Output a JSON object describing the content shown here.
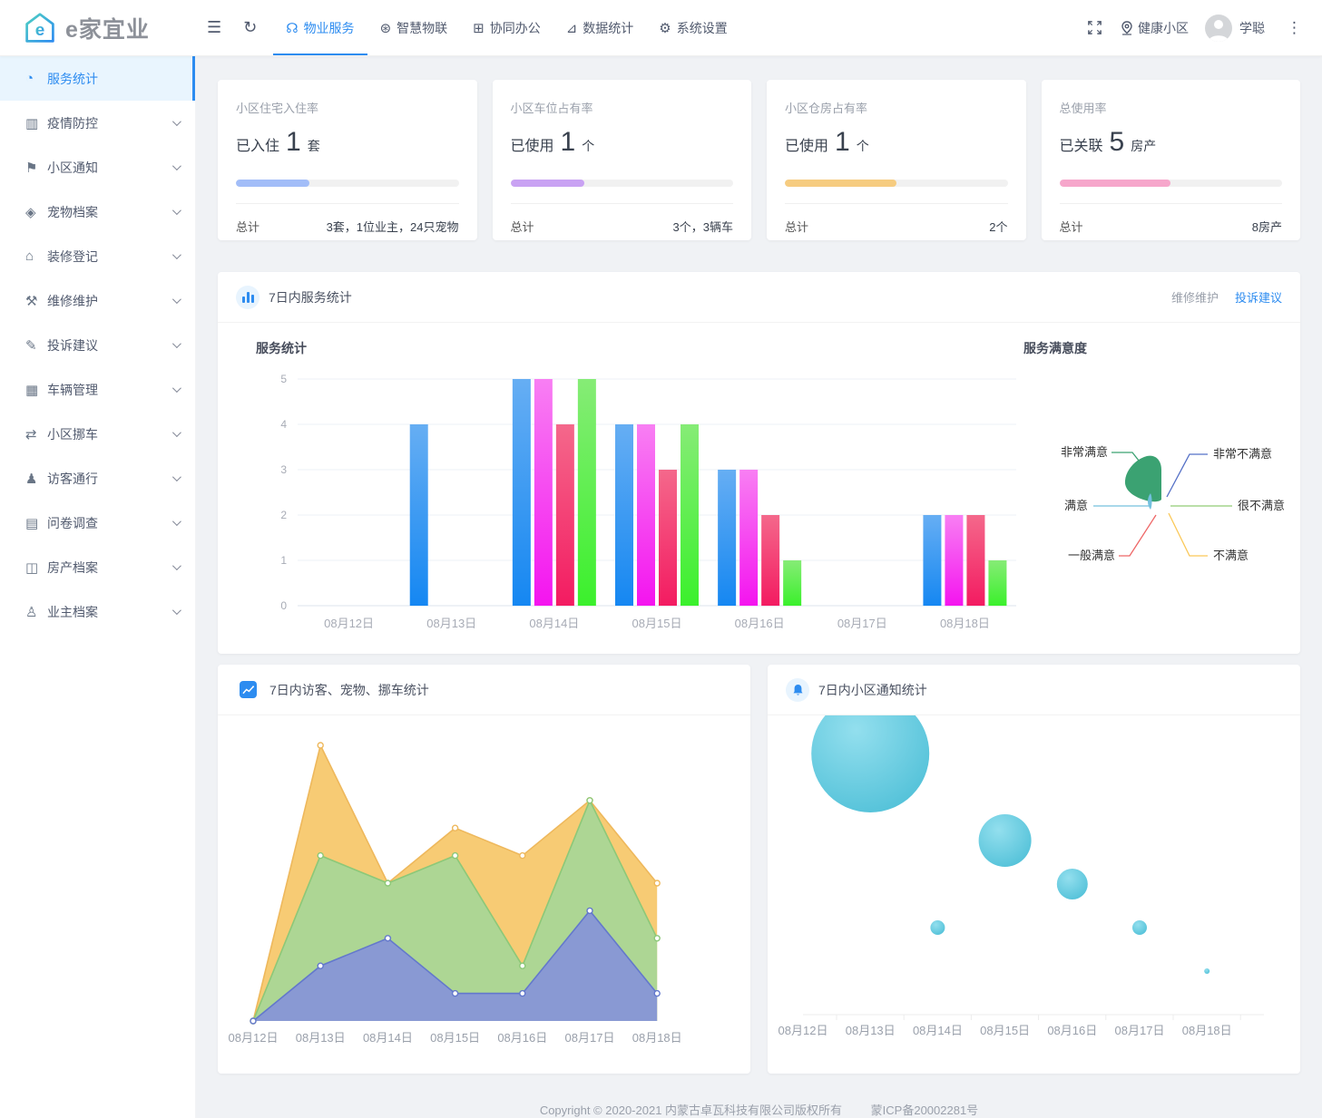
{
  "header": {
    "logo_text": "e家宜业",
    "nav": [
      {
        "label": "物业服务",
        "icon": "headset-icon",
        "glyph": "☊",
        "active": true
      },
      {
        "label": "智慧物联",
        "icon": "iot-icon",
        "glyph": "⊛",
        "active": false
      },
      {
        "label": "协同办公",
        "icon": "office-icon",
        "glyph": "⊞",
        "active": false
      },
      {
        "label": "数据统计",
        "icon": "data-stats-icon",
        "glyph": "⊿",
        "active": false
      },
      {
        "label": "系统设置",
        "icon": "settings-gear-icon",
        "glyph": "⚙",
        "active": false
      }
    ],
    "community": "健康小区",
    "username": "学聪"
  },
  "sidebar": {
    "items": [
      {
        "label": "服务统计",
        "icon": "gauge-icon",
        "glyph": "◔",
        "active": true,
        "expandable": false
      },
      {
        "label": "疫情防控",
        "icon": "epidemic-doc-icon",
        "glyph": "▥",
        "active": false,
        "expandable": true
      },
      {
        "label": "小区通知",
        "icon": "megaphone-icon",
        "glyph": "⚑",
        "active": false,
        "expandable": true
      },
      {
        "label": "宠物档案",
        "icon": "pet-icon",
        "glyph": "◈",
        "active": false,
        "expandable": true
      },
      {
        "label": "装修登记",
        "icon": "house-renovation-icon",
        "glyph": "⌂",
        "active": false,
        "expandable": true
      },
      {
        "label": "维修维护",
        "icon": "repair-tools-icon",
        "glyph": "⚒",
        "active": false,
        "expandable": true
      },
      {
        "label": "投诉建议",
        "icon": "complaint-icon",
        "glyph": "✎",
        "active": false,
        "expandable": true
      },
      {
        "label": "车辆管理",
        "icon": "vehicle-icon",
        "glyph": "▦",
        "active": false,
        "expandable": true
      },
      {
        "label": "小区挪车",
        "icon": "move-car-icon",
        "glyph": "⇄",
        "active": false,
        "expandable": true
      },
      {
        "label": "访客通行",
        "icon": "visitor-icon",
        "glyph": "♟",
        "active": false,
        "expandable": true
      },
      {
        "label": "问卷调查",
        "icon": "survey-icon",
        "glyph": "▤",
        "active": false,
        "expandable": true
      },
      {
        "label": "房产档案",
        "icon": "property-archive-icon",
        "glyph": "◫",
        "active": false,
        "expandable": true
      },
      {
        "label": "业主档案",
        "icon": "owner-archive-icon",
        "glyph": "♙",
        "active": false,
        "expandable": true
      }
    ]
  },
  "cards": [
    {
      "title": "小区住宅入住率",
      "prefix": "已入住",
      "value": "1",
      "unit": "套",
      "percent": 33,
      "bar_color": "#a2bdf8",
      "total_label": "总计",
      "total_value": "3套，1位业主，24只宠物"
    },
    {
      "title": "小区车位占有率",
      "prefix": "已使用",
      "value": "1",
      "unit": "个",
      "percent": 33,
      "bar_color": "#c9a2f3",
      "total_label": "总计",
      "total_value": "3个，3辆车"
    },
    {
      "title": "小区仓房占有率",
      "prefix": "已使用",
      "value": "1",
      "unit": "个",
      "percent": 50,
      "bar_color": "#f6cc80",
      "total_label": "总计",
      "total_value": "2个"
    },
    {
      "title": "总使用率",
      "prefix": "已关联",
      "value": "5",
      "unit": "房产",
      "percent": 50,
      "bar_color": "#f6a6cb",
      "total_label": "总计",
      "total_value": "8房产"
    }
  ],
  "service_panel": {
    "title": "7日内服务统计",
    "links": [
      {
        "label": "维修维护",
        "active": false
      },
      {
        "label": "投诉建议",
        "active": true
      }
    ]
  },
  "visitor_panel": {
    "title": "7日内访客、宠物、挪车统计"
  },
  "notice_panel": {
    "title": "7日内小区通知统计"
  },
  "footer": {
    "copyright": "Copyright © 2020-2021 内蒙古卓瓦科技有限公司版权所有",
    "icp": "蒙ICP备20002281号"
  },
  "chart_data": [
    {
      "type": "bar",
      "title": "服务统计",
      "categories": [
        "08月12日",
        "08月13日",
        "08月14日",
        "08月15日",
        "08月16日",
        "08月17日",
        "08月18日"
      ],
      "series": [
        {
          "name": "series-blue",
          "color_top": "#66aef3",
          "color_bottom": "#1587f2",
          "values": [
            0,
            4,
            5,
            4,
            3,
            0,
            2
          ]
        },
        {
          "name": "series-magenta",
          "color_top": "#f87ff3",
          "color_bottom": "#f414ef",
          "values": [
            0,
            0,
            5,
            4,
            3,
            0,
            2
          ]
        },
        {
          "name": "series-pink",
          "color_top": "#f4688b",
          "color_bottom": "#f31b61",
          "values": [
            0,
            0,
            4,
            3,
            2,
            0,
            2
          ]
        },
        {
          "name": "series-green",
          "color_top": "#86ec76",
          "color_bottom": "#3bf02c",
          "values": [
            0,
            0,
            5,
            4,
            1,
            0,
            1
          ]
        }
      ],
      "ylim": [
        0,
        5
      ],
      "yticks": [
        0,
        1,
        2,
        3,
        4,
        5
      ],
      "grid": true
    },
    {
      "type": "pie",
      "title": "服务满意度",
      "slices": [
        {
          "label": "非常满意",
          "color": "#3ba272",
          "dominant": true
        },
        {
          "label": "满意",
          "color": "#73c0de",
          "dominant": false
        },
        {
          "label": "一般满意",
          "color": "#ee6666",
          "dominant": false
        },
        {
          "label": "不满意",
          "color": "#fac858",
          "dominant": false
        },
        {
          "label": "很不满意",
          "color": "#91cc75",
          "dominant": false
        },
        {
          "label": "非常不满意",
          "color": "#5470c6",
          "dominant": false
        }
      ]
    },
    {
      "type": "area",
      "title": "7日内访客、宠物、挪车统计",
      "categories": [
        "08月12日",
        "08月13日",
        "08月14日",
        "08月15日",
        "08月16日",
        "08月17日",
        "08月18日"
      ],
      "series": [
        {
          "name": "series-orange",
          "fill": "#f6c768",
          "stroke": "#eeb85c",
          "values": [
            0,
            10,
            5,
            7,
            6,
            8,
            5
          ]
        },
        {
          "name": "series-green",
          "fill": "#a6d797",
          "stroke": "#8cc878",
          "values": [
            0,
            6,
            5,
            6,
            2,
            8,
            3
          ]
        },
        {
          "name": "series-blue",
          "fill": "#8594d8",
          "stroke": "#6378cc",
          "values": [
            0,
            2,
            3,
            1,
            1,
            4,
            1
          ]
        }
      ]
    },
    {
      "type": "bubble",
      "title": "7日内小区通知统计",
      "categories": [
        "08月12日",
        "08月13日",
        "08月14日",
        "08月15日",
        "08月16日",
        "08月17日",
        "08月18日"
      ],
      "color": "#54c2d9",
      "points": [
        {
          "x": "08月13日",
          "value": 6,
          "size": 65
        },
        {
          "x": "08月14日",
          "value": 2,
          "size": 8
        },
        {
          "x": "08月15日",
          "value": 4,
          "size": 29
        },
        {
          "x": "08月16日",
          "value": 3,
          "size": 17
        },
        {
          "x": "08月17日",
          "value": 2,
          "size": 8
        },
        {
          "x": "08月18日",
          "value": 1,
          "size": 3
        }
      ]
    }
  ]
}
